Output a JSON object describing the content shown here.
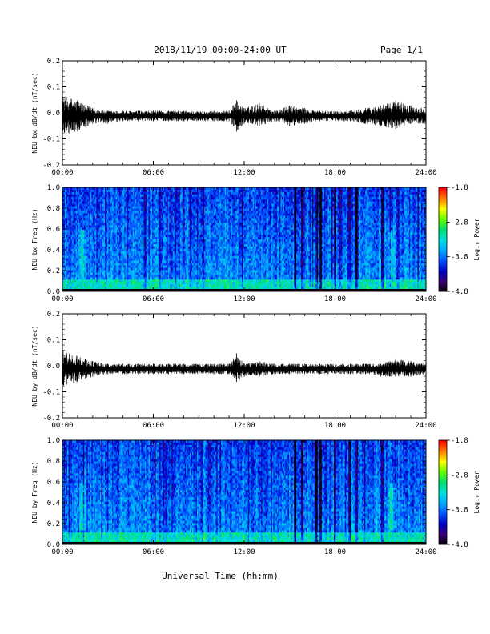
{
  "header": {
    "title": "2018/11/19  00:00-24:00 UT",
    "page": "Page 1/1"
  },
  "colors": {
    "trace": "#000000",
    "colormap": [
      "#000000",
      "#3b0070",
      "#0000c8",
      "#0050ff",
      "#00a8ff",
      "#00e0e0",
      "#00e070",
      "#60ff00",
      "#ffff00",
      "#ff8000",
      "#ff0000"
    ]
  },
  "chart_data": [
    {
      "type": "line",
      "ylabel": "NEU bx dB/dt (nT/sec)",
      "xlabel": "",
      "xlim": [
        "00:00",
        "24:00"
      ],
      "ylim": [
        -0.2,
        0.2
      ],
      "xticks": [
        "00:00",
        "06:00",
        "12:00",
        "18:00",
        "24:00"
      ],
      "yticks": [
        "0.2",
        "0.1",
        "0.0",
        "-0.1",
        "-0.2"
      ],
      "series": [
        {
          "x": [
            "00:00",
            "01:00",
            "02:00",
            "03:00",
            "04:00",
            "05:00",
            "06:00",
            "07:00",
            "08:00",
            "09:00",
            "10:00",
            "11:00",
            "11:30",
            "12:00",
            "13:00",
            "14:00",
            "15:00",
            "16:00",
            "17:00",
            "18:00",
            "19:00",
            "20:00",
            "21:00",
            "22:00",
            "23:00",
            "24:00"
          ],
          "max": [
            0.08,
            0.06,
            0.03,
            0.02,
            0.02,
            0.02,
            0.02,
            0.02,
            0.02,
            0.02,
            0.02,
            0.02,
            0.06,
            0.03,
            0.05,
            0.02,
            0.04,
            0.03,
            0.02,
            0.02,
            0.02,
            0.03,
            0.04,
            0.06,
            0.04,
            0.03
          ],
          "min": [
            -0.08,
            -0.06,
            -0.03,
            -0.03,
            -0.02,
            -0.02,
            -0.02,
            -0.02,
            -0.02,
            -0.02,
            -0.02,
            -0.02,
            -0.06,
            -0.03,
            -0.04,
            -0.02,
            -0.04,
            -0.03,
            -0.02,
            -0.02,
            -0.02,
            -0.03,
            -0.04,
            -0.05,
            -0.03,
            -0.03
          ]
        }
      ]
    },
    {
      "type": "heatmap",
      "ylabel": "NEU bx Freq (Hz)",
      "xlabel": "",
      "xlim": [
        "00:00",
        "24:00"
      ],
      "ylim": [
        0.0,
        1.0
      ],
      "xticks": [
        "00:00",
        "06:00",
        "12:00",
        "18:00",
        "24:00"
      ],
      "yticks": [
        "1.0",
        "0.8",
        "0.6",
        "0.4",
        "0.2",
        "0.0"
      ],
      "colorbar": {
        "label": "Log₁₀ Power",
        "ticks": [
          "-1.8",
          "-2.8",
          "-3.8",
          "-4.8"
        ],
        "range": [
          -4.8,
          -1.8
        ]
      }
    },
    {
      "type": "line",
      "ylabel": "NEU by dB/dt (nT/sec)",
      "xlabel": "",
      "xlim": [
        "00:00",
        "24:00"
      ],
      "ylim": [
        -0.2,
        0.2
      ],
      "xticks": [
        "00:00",
        "06:00",
        "12:00",
        "18:00",
        "24:00"
      ],
      "yticks": [
        "0.2",
        "0.1",
        "0.0",
        "-0.1",
        "-0.2"
      ],
      "series": [
        {
          "x": [
            "00:00",
            "01:00",
            "02:00",
            "03:00",
            "04:00",
            "05:00",
            "06:00",
            "07:00",
            "08:00",
            "09:00",
            "10:00",
            "11:00",
            "11:30",
            "12:00",
            "13:00",
            "14:00",
            "15:00",
            "16:00",
            "17:00",
            "18:00",
            "19:00",
            "20:00",
            "21:00",
            "22:00",
            "23:00",
            "24:00"
          ],
          "max": [
            0.07,
            0.05,
            0.03,
            0.02,
            0.02,
            0.02,
            0.02,
            0.02,
            0.02,
            0.02,
            0.02,
            0.02,
            0.06,
            0.02,
            0.03,
            0.02,
            0.02,
            0.02,
            0.02,
            0.02,
            0.02,
            0.02,
            0.02,
            0.04,
            0.03,
            0.02
          ],
          "min": [
            -0.07,
            -0.05,
            -0.03,
            -0.02,
            -0.02,
            -0.02,
            -0.02,
            -0.02,
            -0.02,
            -0.02,
            -0.02,
            -0.02,
            -0.05,
            -0.03,
            -0.03,
            -0.02,
            -0.02,
            -0.02,
            -0.02,
            -0.02,
            -0.02,
            -0.02,
            -0.03,
            -0.03,
            -0.03,
            -0.02
          ]
        }
      ]
    },
    {
      "type": "heatmap",
      "ylabel": "NEU by Freq (Hz)",
      "xlabel": "Universal Time (hh:mm)",
      "xlim": [
        "00:00",
        "24:00"
      ],
      "ylim": [
        0.0,
        1.0
      ],
      "xticks": [
        "00:00",
        "06:00",
        "12:00",
        "18:00",
        "24:00"
      ],
      "yticks": [
        "1.0",
        "0.8",
        "0.6",
        "0.4",
        "0.2",
        "0.0"
      ],
      "colorbar": {
        "label": "Log₁₀ Power",
        "ticks": [
          "-1.8",
          "-2.8",
          "-3.8",
          "-4.8"
        ],
        "range": [
          -4.8,
          -1.8
        ]
      }
    }
  ]
}
